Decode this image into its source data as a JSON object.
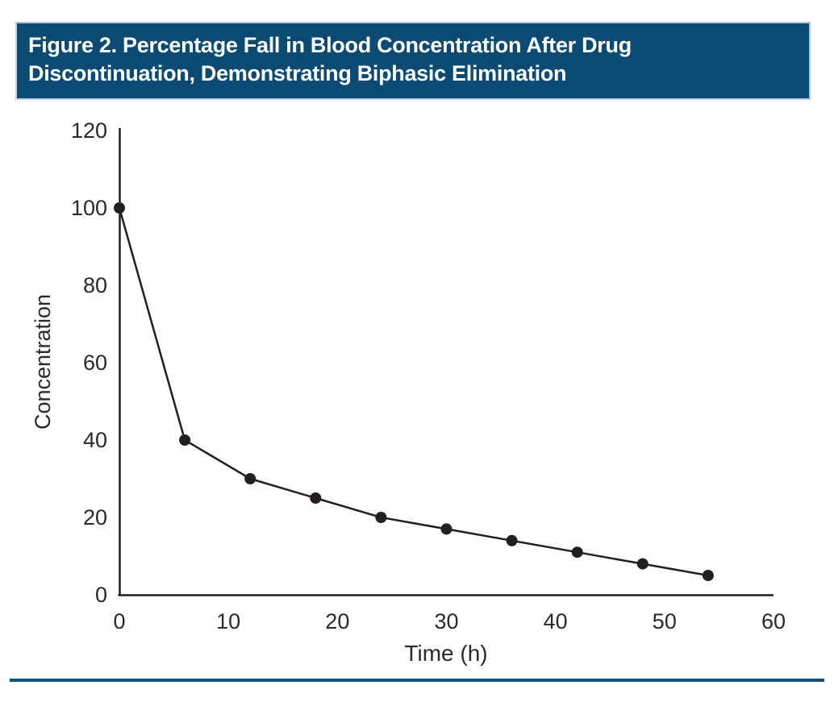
{
  "figure": {
    "title_line1": "Figure 2. Percentage Fall in Blood Concentration After Drug",
    "title_line2": "Discontinuation, Demonstrating Biphasic Elimination",
    "band_color": "#0b4a73",
    "band_text_color": "#ffffff",
    "bottom_rule_color": "#14507c"
  },
  "chart_data": {
    "type": "line",
    "title": "",
    "xlabel": "Time (h)",
    "ylabel": "Concentration",
    "x": [
      0,
      6,
      12,
      18,
      24,
      30,
      36,
      42,
      48,
      54
    ],
    "values": [
      100,
      40,
      30,
      25,
      20,
      17,
      14,
      11,
      8,
      5
    ],
    "xlim": [
      0,
      60
    ],
    "ylim": [
      0,
      120
    ],
    "xticks": [
      0,
      10,
      20,
      30,
      40,
      50,
      60
    ],
    "yticks": [
      0,
      20,
      40,
      60,
      80,
      100,
      120
    ],
    "grid": false,
    "legend": "none",
    "marker": "filled-circle",
    "line_color": "#231f20",
    "marker_color": "#231f20",
    "axis_color": "#231f20",
    "tick_label_color": "#2a2a2a"
  }
}
